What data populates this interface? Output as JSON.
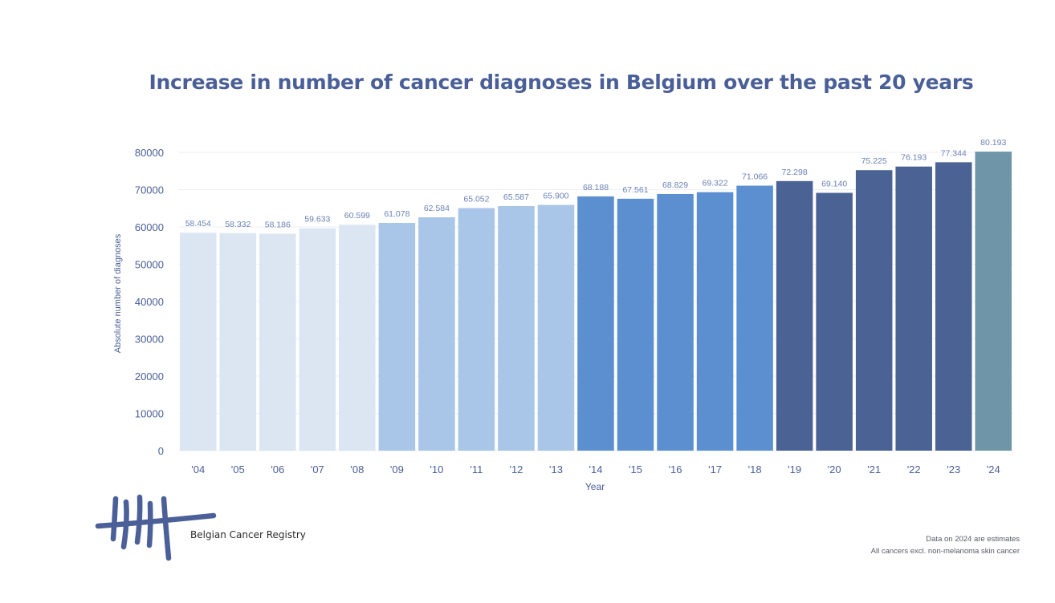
{
  "chart_data": {
    "type": "bar",
    "title": "Increase in number of cancer diagnoses in Belgium over the past 20 years",
    "xlabel": "Year",
    "ylabel": "Absolute number of diagnoses",
    "categories": [
      "'04",
      "'05",
      "'06",
      "'07",
      "'08",
      "'09",
      "'10",
      "'11",
      "'12",
      "'13",
      "'14",
      "'15",
      "'16",
      "'17",
      "'18",
      "'19",
      "'20",
      "'21",
      "'22",
      "'23",
      "'24"
    ],
    "values": [
      58454,
      58332,
      58186,
      59633,
      60599,
      61078,
      62584,
      65052,
      65587,
      65900,
      68188,
      67561,
      68829,
      69322,
      71066,
      72298,
      69140,
      75225,
      76193,
      77344,
      80193
    ],
    "value_labels": [
      "58.454",
      "58.332",
      "58.186",
      "59.633",
      "60.599",
      "61.078",
      "62.584",
      "65.052",
      "65.587",
      "65.900",
      "68.188",
      "67.561",
      "68.829",
      "69.322",
      "71.066",
      "72.298",
      "69.140",
      "75.225",
      "76.193",
      "77.344",
      "80.193"
    ],
    "ylim": [
      0,
      80000
    ],
    "yticks": [
      0,
      10000,
      20000,
      30000,
      40000,
      50000,
      60000,
      70000,
      80000
    ],
    "grid": true,
    "bar_colors": [
      "#dce6f3",
      "#dce6f3",
      "#dce6f3",
      "#dce6f3",
      "#dce6f3",
      "#a9c5e7",
      "#a9c5e7",
      "#a9c5e7",
      "#a9c5e7",
      "#a9c5e7",
      "#5c8fd0",
      "#5c8fd0",
      "#5c8fd0",
      "#5c8fd0",
      "#5c8fd0",
      "#4b6294",
      "#4b6294",
      "#4b6294",
      "#4b6294",
      "#4b6294",
      "#6f95a8"
    ]
  },
  "colors": {
    "title": "#4a5f98",
    "axis_text": "#4a5f98",
    "value_label": "#6a82b6",
    "logo": "#4b5f98"
  },
  "logo": {
    "icon": "belgian-cancer-registry-logo",
    "name": "Belgian Cancer Registry"
  },
  "notes": {
    "line1": "Data on 2024 are estimates",
    "line2": "All cancers excl. non-melanoma skin cancer"
  }
}
